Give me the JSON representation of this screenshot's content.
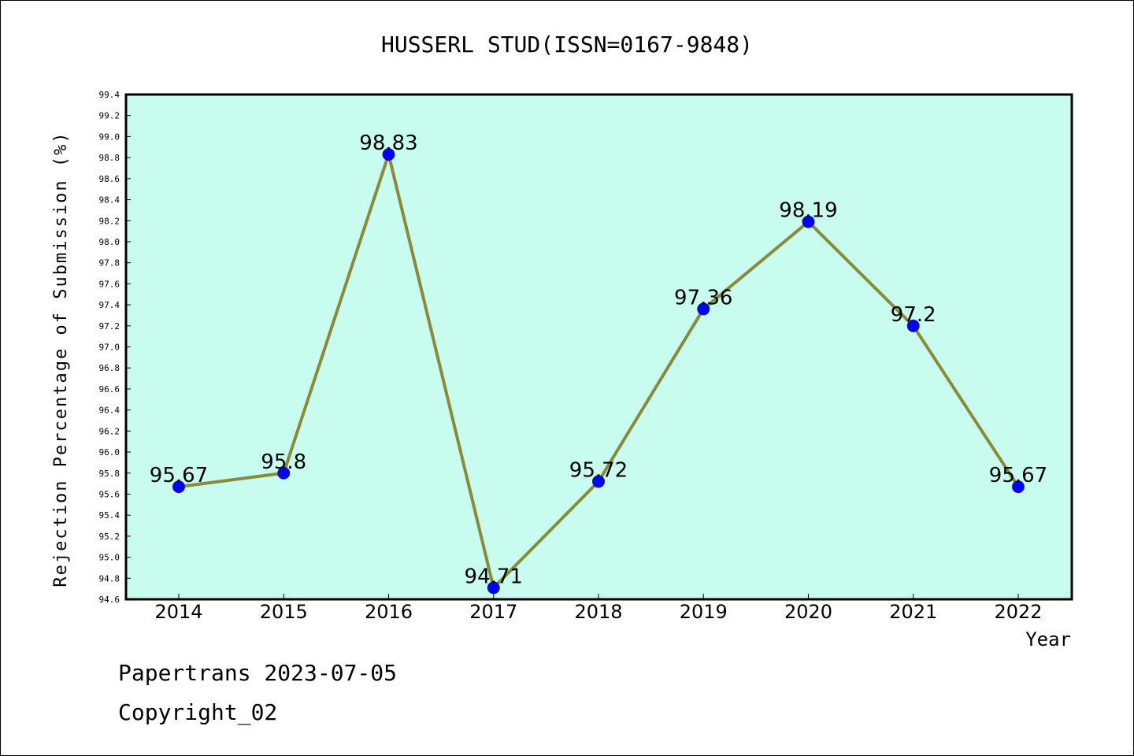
{
  "chart_data": {
    "type": "line",
    "title": "HUSSERL STUD(ISSN=0167-9848)",
    "xlabel": "Year",
    "ylabel": "Rejection Percentage of Submission (%)",
    "categories": [
      "2014",
      "2015",
      "2016",
      "2017",
      "2018",
      "2019",
      "2020",
      "2021",
      "2022"
    ],
    "series": [
      {
        "values": [
          95.67,
          95.8,
          98.83,
          94.71,
          95.72,
          97.36,
          98.19,
          97.2,
          95.67
        ]
      }
    ],
    "data_labels": [
      "95.67",
      "95.8",
      "98.83",
      "94.71",
      "95.72",
      "97.36",
      "98.19",
      "97.2",
      "95.67"
    ],
    "ylim": [
      94.6,
      99.4
    ],
    "yticks": [
      "94.6",
      "94.8",
      "95.0",
      "95.2",
      "95.4",
      "95.6",
      "95.8",
      "96.0",
      "96.2",
      "96.4",
      "96.6",
      "96.8",
      "97.0",
      "97.2",
      "97.4",
      "97.6",
      "97.8",
      "98.0",
      "98.2",
      "98.4",
      "98.6",
      "98.8",
      "99.0",
      "99.2",
      "99.4"
    ],
    "grid": false,
    "plot_background": "#c8fcee",
    "line_color": "#8b8a3a",
    "marker_color": "#0000ff"
  },
  "footer": {
    "line1": "Papertrans 2023-07-05",
    "line2": "Copyright_02"
  }
}
